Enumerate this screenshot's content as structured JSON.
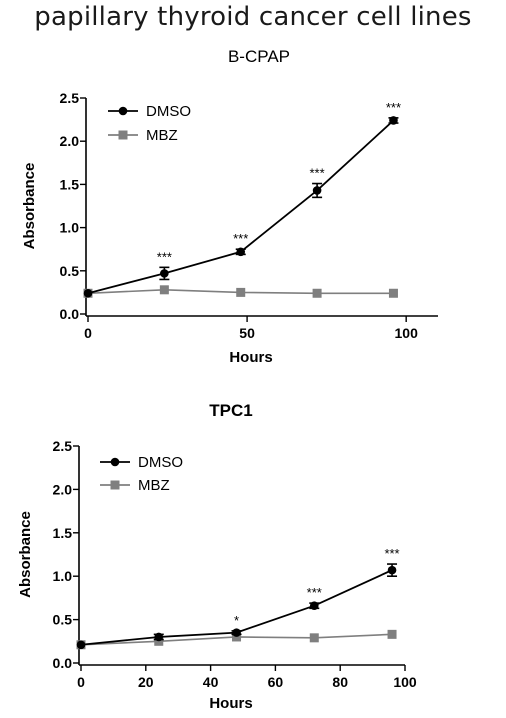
{
  "page": {
    "heading": "papillary thyroid cancer cell lines"
  },
  "chart_data": [
    {
      "type": "line",
      "title": "B-CPAP",
      "xlabel": "Hours",
      "ylabel": "Absorbance",
      "xlim": [
        0,
        110
      ],
      "ylim": [
        0.0,
        2.5
      ],
      "xticks": [
        0,
        50,
        100
      ],
      "xtick_labels": [
        "0",
        "50",
        "100"
      ],
      "yticks": [
        0.0,
        0.5,
        1.0,
        1.5,
        2.0,
        2.5
      ],
      "ytick_labels": [
        "0.0",
        "0.5",
        "1.0",
        "1.5",
        "2.0",
        "2.5"
      ],
      "legend_position": "top-left",
      "grid": false,
      "series": [
        {
          "name": "DMSO",
          "marker": "circle",
          "color": "#000000",
          "x": [
            0,
            24,
            48,
            72,
            96
          ],
          "y": [
            0.24,
            0.47,
            0.72,
            1.43,
            2.24
          ],
          "error": [
            0,
            0.07,
            0.03,
            0.08,
            0.03
          ]
        },
        {
          "name": "MBZ",
          "marker": "square",
          "color": "#7f7f7f",
          "x": [
            0,
            24,
            48,
            72,
            96
          ],
          "y": [
            0.24,
            0.28,
            0.25,
            0.24,
            0.24
          ],
          "error": [
            0,
            0,
            0,
            0,
            0
          ]
        }
      ],
      "annotations": [
        {
          "x": 24,
          "text": "***"
        },
        {
          "x": 48,
          "text": "***"
        },
        {
          "x": 72,
          "text": "***"
        },
        {
          "x": 96,
          "text": "***"
        }
      ]
    },
    {
      "type": "line",
      "title": "TPC1",
      "xlabel": "Hours",
      "ylabel": "Absorbance",
      "xlim": [
        0,
        100
      ],
      "ylim": [
        0.0,
        2.5
      ],
      "xticks": [
        0,
        20,
        40,
        60,
        80,
        100
      ],
      "xtick_labels": [
        "0",
        "20",
        "40",
        "60",
        "80",
        "100"
      ],
      "yticks": [
        0.0,
        0.5,
        1.0,
        1.5,
        2.0,
        2.5
      ],
      "ytick_labels": [
        "0.0",
        "0.5",
        "1.0",
        "1.5",
        "2.0",
        "2.5"
      ],
      "legend_position": "top-left",
      "grid": false,
      "series": [
        {
          "name": "DMSO",
          "marker": "circle",
          "color": "#000000",
          "x": [
            0,
            24,
            48,
            72,
            96
          ],
          "y": [
            0.21,
            0.3,
            0.35,
            0.66,
            1.07
          ],
          "error": [
            0,
            0.03,
            0.02,
            0.03,
            0.07
          ]
        },
        {
          "name": "MBZ",
          "marker": "square",
          "color": "#7f7f7f",
          "x": [
            0,
            24,
            48,
            72,
            96
          ],
          "y": [
            0.21,
            0.25,
            0.3,
            0.29,
            0.33
          ],
          "error": [
            0,
            0,
            0,
            0,
            0
          ]
        }
      ],
      "annotations": [
        {
          "x": 48,
          "text": "*"
        },
        {
          "x": 72,
          "text": "***"
        },
        {
          "x": 96,
          "text": "***"
        }
      ]
    }
  ]
}
